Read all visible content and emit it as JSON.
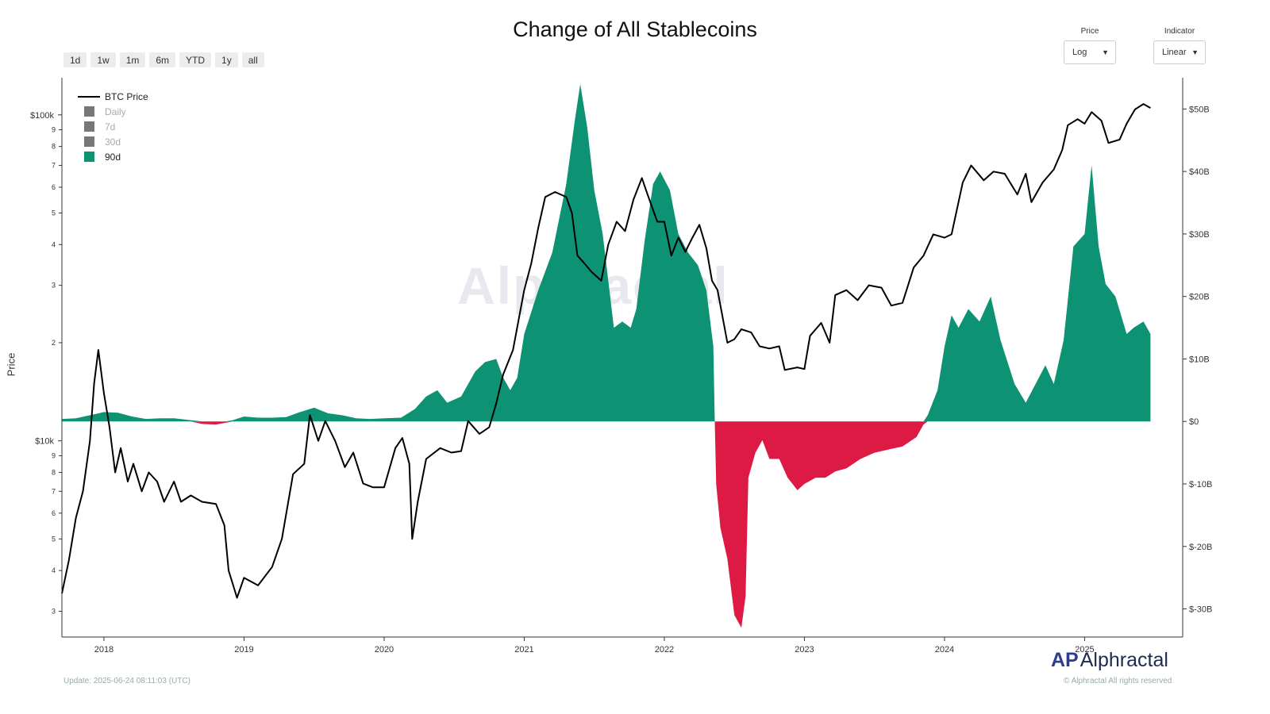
{
  "title": "Change of All Stablecoins",
  "range_buttons": [
    "1d",
    "1w",
    "1m",
    "6m",
    "YTD",
    "1y",
    "all"
  ],
  "controls": {
    "price": {
      "label": "Price",
      "value": "Log"
    },
    "indicator": {
      "label": "Indicator",
      "value": "Linear"
    }
  },
  "left_axis_label": "Price",
  "legend": [
    {
      "label": "BTC Price",
      "kind": "line",
      "color": "#000000",
      "active": true
    },
    {
      "label": "Daily",
      "kind": "box",
      "color": "#777777",
      "active": false
    },
    {
      "label": "7d",
      "kind": "box",
      "color": "#777777",
      "active": false
    },
    {
      "label": "30d",
      "kind": "box",
      "color": "#777777",
      "active": false
    },
    {
      "label": "90d",
      "kind": "box",
      "color": "#0d9373",
      "active": true
    }
  ],
  "watermark": "Alphractal",
  "brand": {
    "mark": "AP",
    "name": "Alphractal",
    "copyright": "© Alphractal All rights reserved"
  },
  "update_text": "Update: 2025-06-24 08:11:03 (UTC)",
  "colors": {
    "positive": "#0d9373",
    "negative": "#dc1a44",
    "price_line": "#000000"
  },
  "chart_data": {
    "type": "area",
    "title": "Change of All Stablecoins",
    "x_ticks": [
      "2018",
      "2019",
      "2020",
      "2021",
      "2022",
      "2023",
      "2024",
      "2025"
    ],
    "left_axis": {
      "label": "Price",
      "scale": "log",
      "major_labels": [
        {
          "v": 10000,
          "t": "$10k"
        },
        {
          "v": 100000,
          "t": "$100k"
        }
      ],
      "minor_labels": [
        {
          "v": 3000,
          "t": "3"
        },
        {
          "v": 4000,
          "t": "4"
        },
        {
          "v": 5000,
          "t": "5"
        },
        {
          "v": 6000,
          "t": "6"
        },
        {
          "v": 7000,
          "t": "7"
        },
        {
          "v": 8000,
          "t": "8"
        },
        {
          "v": 9000,
          "t": "9"
        },
        {
          "v": 20000,
          "t": "2"
        },
        {
          "v": 30000,
          "t": "3"
        },
        {
          "v": 40000,
          "t": "4"
        },
        {
          "v": 50000,
          "t": "5"
        },
        {
          "v": 60000,
          "t": "6"
        },
        {
          "v": 70000,
          "t": "7"
        },
        {
          "v": 80000,
          "t": "8"
        },
        {
          "v": 90000,
          "t": "9"
        }
      ],
      "range": [
        2500,
        130000
      ]
    },
    "right_axis": {
      "scale": "linear",
      "ticks": [
        {
          "v": 50,
          "t": "$50B"
        },
        {
          "v": 40,
          "t": "$40B"
        },
        {
          "v": 30,
          "t": "$30B"
        },
        {
          "v": 20,
          "t": "$20B"
        },
        {
          "v": 10,
          "t": "$10B"
        },
        {
          "v": 0,
          "t": "$0"
        },
        {
          "v": -10,
          "t": "$-10B"
        },
        {
          "v": -20,
          "t": "$-20B"
        },
        {
          "v": -30,
          "t": "$-30B"
        }
      ],
      "range": [
        -34.5,
        55
      ]
    },
    "x_range": [
      2017.7,
      2025.7
    ],
    "series": [
      {
        "name": "BTC Price",
        "kind": "line",
        "points": [
          [
            2017.7,
            3400
          ],
          [
            2017.75,
            4300
          ],
          [
            2017.8,
            5800
          ],
          [
            2017.85,
            7000
          ],
          [
            2017.9,
            10000
          ],
          [
            2017.93,
            15000
          ],
          [
            2017.96,
            19000
          ],
          [
            2018.0,
            14000
          ],
          [
            2018.04,
            11000
          ],
          [
            2018.08,
            8000
          ],
          [
            2018.12,
            9500
          ],
          [
            2018.17,
            7500
          ],
          [
            2018.21,
            8500
          ],
          [
            2018.27,
            7000
          ],
          [
            2018.32,
            8000
          ],
          [
            2018.38,
            7500
          ],
          [
            2018.43,
            6500
          ],
          [
            2018.5,
            7500
          ],
          [
            2018.55,
            6500
          ],
          [
            2018.62,
            6800
          ],
          [
            2018.7,
            6500
          ],
          [
            2018.8,
            6400
          ],
          [
            2018.86,
            5500
          ],
          [
            2018.89,
            4000
          ],
          [
            2018.95,
            3300
          ],
          [
            2019.0,
            3800
          ],
          [
            2019.1,
            3600
          ],
          [
            2019.2,
            4100
          ],
          [
            2019.27,
            5000
          ],
          [
            2019.35,
            7900
          ],
          [
            2019.43,
            8500
          ],
          [
            2019.47,
            12000
          ],
          [
            2019.53,
            10000
          ],
          [
            2019.58,
            11500
          ],
          [
            2019.65,
            10000
          ],
          [
            2019.72,
            8300
          ],
          [
            2019.78,
            9200
          ],
          [
            2019.85,
            7400
          ],
          [
            2019.92,
            7200
          ],
          [
            2020.0,
            7200
          ],
          [
            2020.08,
            9500
          ],
          [
            2020.13,
            10200
          ],
          [
            2020.18,
            8500
          ],
          [
            2020.2,
            5000
          ],
          [
            2020.24,
            6500
          ],
          [
            2020.3,
            8800
          ],
          [
            2020.4,
            9500
          ],
          [
            2020.48,
            9200
          ],
          [
            2020.55,
            9300
          ],
          [
            2020.6,
            11500
          ],
          [
            2020.68,
            10500
          ],
          [
            2020.75,
            11000
          ],
          [
            2020.8,
            13000
          ],
          [
            2020.85,
            16000
          ],
          [
            2020.92,
            19000
          ],
          [
            2021.0,
            29000
          ],
          [
            2021.05,
            35000
          ],
          [
            2021.1,
            45000
          ],
          [
            2021.15,
            56000
          ],
          [
            2021.22,
            58000
          ],
          [
            2021.3,
            56000
          ],
          [
            2021.34,
            50000
          ],
          [
            2021.38,
            37000
          ],
          [
            2021.43,
            35000
          ],
          [
            2021.48,
            33000
          ],
          [
            2021.55,
            31000
          ],
          [
            2021.6,
            40000
          ],
          [
            2021.66,
            47000
          ],
          [
            2021.72,
            44000
          ],
          [
            2021.78,
            55000
          ],
          [
            2021.84,
            64000
          ],
          [
            2021.88,
            57000
          ],
          [
            2021.95,
            47000
          ],
          [
            2022.0,
            47000
          ],
          [
            2022.05,
            37000
          ],
          [
            2022.1,
            42000
          ],
          [
            2022.15,
            38000
          ],
          [
            2022.2,
            42000
          ],
          [
            2022.25,
            46000
          ],
          [
            2022.3,
            39000
          ],
          [
            2022.34,
            31000
          ],
          [
            2022.38,
            29000
          ],
          [
            2022.45,
            20000
          ],
          [
            2022.5,
            20500
          ],
          [
            2022.55,
            22000
          ],
          [
            2022.62,
            21500
          ],
          [
            2022.68,
            19500
          ],
          [
            2022.75,
            19200
          ],
          [
            2022.82,
            19500
          ],
          [
            2022.86,
            16500
          ],
          [
            2022.95,
            16800
          ],
          [
            2023.0,
            16600
          ],
          [
            2023.04,
            21000
          ],
          [
            2023.12,
            23000
          ],
          [
            2023.18,
            20000
          ],
          [
            2023.22,
            28000
          ],
          [
            2023.3,
            29000
          ],
          [
            2023.38,
            27000
          ],
          [
            2023.46,
            30000
          ],
          [
            2023.55,
            29500
          ],
          [
            2023.62,
            26000
          ],
          [
            2023.7,
            26500
          ],
          [
            2023.78,
            34000
          ],
          [
            2023.85,
            37000
          ],
          [
            2023.92,
            43000
          ],
          [
            2024.0,
            42000
          ],
          [
            2024.05,
            43000
          ],
          [
            2024.13,
            62000
          ],
          [
            2024.19,
            70000
          ],
          [
            2024.28,
            63000
          ],
          [
            2024.35,
            67000
          ],
          [
            2024.43,
            66000
          ],
          [
            2024.52,
            57000
          ],
          [
            2024.58,
            66000
          ],
          [
            2024.62,
            54000
          ],
          [
            2024.7,
            62000
          ],
          [
            2024.78,
            68000
          ],
          [
            2024.84,
            78000
          ],
          [
            2024.88,
            93000
          ],
          [
            2024.95,
            97000
          ],
          [
            2025.0,
            94000
          ],
          [
            2025.05,
            102000
          ],
          [
            2025.12,
            96000
          ],
          [
            2025.17,
            82000
          ],
          [
            2025.25,
            84000
          ],
          [
            2025.3,
            94000
          ],
          [
            2025.36,
            104000
          ],
          [
            2025.42,
            108000
          ],
          [
            2025.47,
            105000
          ]
        ]
      },
      {
        "name": "90d",
        "kind": "area",
        "unit": "B USD",
        "points": [
          [
            2017.7,
            0.4
          ],
          [
            2017.8,
            0.5
          ],
          [
            2017.9,
            1.0
          ],
          [
            2018.0,
            1.5
          ],
          [
            2018.1,
            1.4
          ],
          [
            2018.2,
            0.8
          ],
          [
            2018.3,
            0.4
          ],
          [
            2018.4,
            0.5
          ],
          [
            2018.5,
            0.5
          ],
          [
            2018.62,
            0.2
          ],
          [
            2018.7,
            -0.4
          ],
          [
            2018.8,
            -0.5
          ],
          [
            2018.87,
            -0.2
          ],
          [
            2018.92,
            0.2
          ],
          [
            2019.0,
            0.8
          ],
          [
            2019.1,
            0.6
          ],
          [
            2019.2,
            0.6
          ],
          [
            2019.3,
            0.7
          ],
          [
            2019.4,
            1.5
          ],
          [
            2019.5,
            2.2
          ],
          [
            2019.6,
            1.3
          ],
          [
            2019.7,
            1.0
          ],
          [
            2019.8,
            0.5
          ],
          [
            2019.9,
            0.4
          ],
          [
            2020.0,
            0.5
          ],
          [
            2020.12,
            0.6
          ],
          [
            2020.22,
            2.0
          ],
          [
            2020.3,
            4.0
          ],
          [
            2020.38,
            5.0
          ],
          [
            2020.45,
            3.0
          ],
          [
            2020.55,
            4.0
          ],
          [
            2020.65,
            8.0
          ],
          [
            2020.72,
            9.5
          ],
          [
            2020.8,
            10.0
          ],
          [
            2020.85,
            7.0
          ],
          [
            2020.9,
            5.0
          ],
          [
            2020.95,
            7.0
          ],
          [
            2021.0,
            14.0
          ],
          [
            2021.1,
            21.0
          ],
          [
            2021.2,
            27.0
          ],
          [
            2021.3,
            38.0
          ],
          [
            2021.36,
            48.0
          ],
          [
            2021.4,
            54.0
          ],
          [
            2021.45,
            47.0
          ],
          [
            2021.5,
            37.0
          ],
          [
            2021.56,
            30.0
          ],
          [
            2021.64,
            15.0
          ],
          [
            2021.7,
            16.0
          ],
          [
            2021.76,
            15.0
          ],
          [
            2021.8,
            18.0
          ],
          [
            2021.86,
            29.0
          ],
          [
            2021.92,
            38.0
          ],
          [
            2021.97,
            40.0
          ],
          [
            2022.04,
            37.0
          ],
          [
            2022.1,
            30.0
          ],
          [
            2022.17,
            27.0
          ],
          [
            2022.24,
            25.0
          ],
          [
            2022.3,
            21.0
          ],
          [
            2022.35,
            12.0
          ],
          [
            2022.36,
            0.0
          ],
          [
            2022.37,
            -10.0
          ],
          [
            2022.4,
            -17.0
          ],
          [
            2022.45,
            -22.0
          ],
          [
            2022.5,
            -31.0
          ],
          [
            2022.55,
            -33.0
          ],
          [
            2022.58,
            -28.0
          ],
          [
            2022.6,
            -9.0
          ],
          [
            2022.65,
            -5.0
          ],
          [
            2022.7,
            -3.0
          ],
          [
            2022.75,
            -6.0
          ],
          [
            2022.82,
            -6.0
          ],
          [
            2022.88,
            -9.0
          ],
          [
            2022.95,
            -11.0
          ],
          [
            2023.0,
            -10.0
          ],
          [
            2023.08,
            -9.0
          ],
          [
            2023.15,
            -9.0
          ],
          [
            2023.22,
            -8.0
          ],
          [
            2023.3,
            -7.5
          ],
          [
            2023.4,
            -6.0
          ],
          [
            2023.5,
            -5.0
          ],
          [
            2023.6,
            -4.5
          ],
          [
            2023.7,
            -4.0
          ],
          [
            2023.8,
            -2.5
          ],
          [
            2023.85,
            -0.5
          ],
          [
            2023.88,
            1.0
          ],
          [
            2023.95,
            5.0
          ],
          [
            2024.0,
            12.0
          ],
          [
            2024.05,
            17.0
          ],
          [
            2024.1,
            15.0
          ],
          [
            2024.17,
            18.0
          ],
          [
            2024.25,
            16.0
          ],
          [
            2024.33,
            20.0
          ],
          [
            2024.4,
            13.0
          ],
          [
            2024.5,
            6.0
          ],
          [
            2024.58,
            3.0
          ],
          [
            2024.65,
            6.0
          ],
          [
            2024.72,
            9.0
          ],
          [
            2024.78,
            6.0
          ],
          [
            2024.85,
            13.0
          ],
          [
            2024.92,
            28.0
          ],
          [
            2025.0,
            30.0
          ],
          [
            2025.05,
            41.0
          ],
          [
            2025.1,
            28.0
          ],
          [
            2025.15,
            22.0
          ],
          [
            2025.22,
            20.0
          ],
          [
            2025.3,
            14.0
          ],
          [
            2025.35,
            15.0
          ],
          [
            2025.42,
            16.0
          ],
          [
            2025.47,
            14.0
          ]
        ]
      }
    ]
  }
}
